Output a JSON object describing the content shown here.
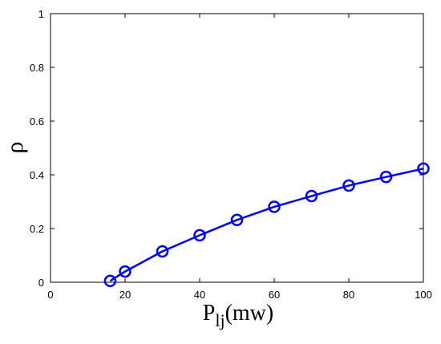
{
  "chart_data": {
    "type": "line",
    "title": "",
    "xlabel": {
      "main": "P",
      "subscript": "lj",
      "suffix": "(mw)"
    },
    "ylabel": "ρ",
    "xlim": [
      0,
      100
    ],
    "ylim": [
      0,
      1
    ],
    "xticks": [
      0,
      20,
      40,
      60,
      80,
      100
    ],
    "yticks": [
      0,
      0.2,
      0.4,
      0.6,
      0.8,
      1
    ],
    "xtick_labels": [
      "0",
      "20",
      "40",
      "60",
      "80",
      "100"
    ],
    "ytick_labels": [
      "0",
      "0.2",
      "0.4",
      "0.6",
      "0.8",
      "1"
    ],
    "grid": false,
    "legend": "none",
    "series": [
      {
        "color": "#0000ff",
        "marker": "circle",
        "x": [
          16,
          20,
          30,
          40,
          50,
          60,
          70,
          80,
          90,
          100
        ],
        "y": [
          0.005,
          0.04,
          0.115,
          0.175,
          0.232,
          0.281,
          0.321,
          0.36,
          0.392,
          0.423
        ]
      }
    ]
  }
}
